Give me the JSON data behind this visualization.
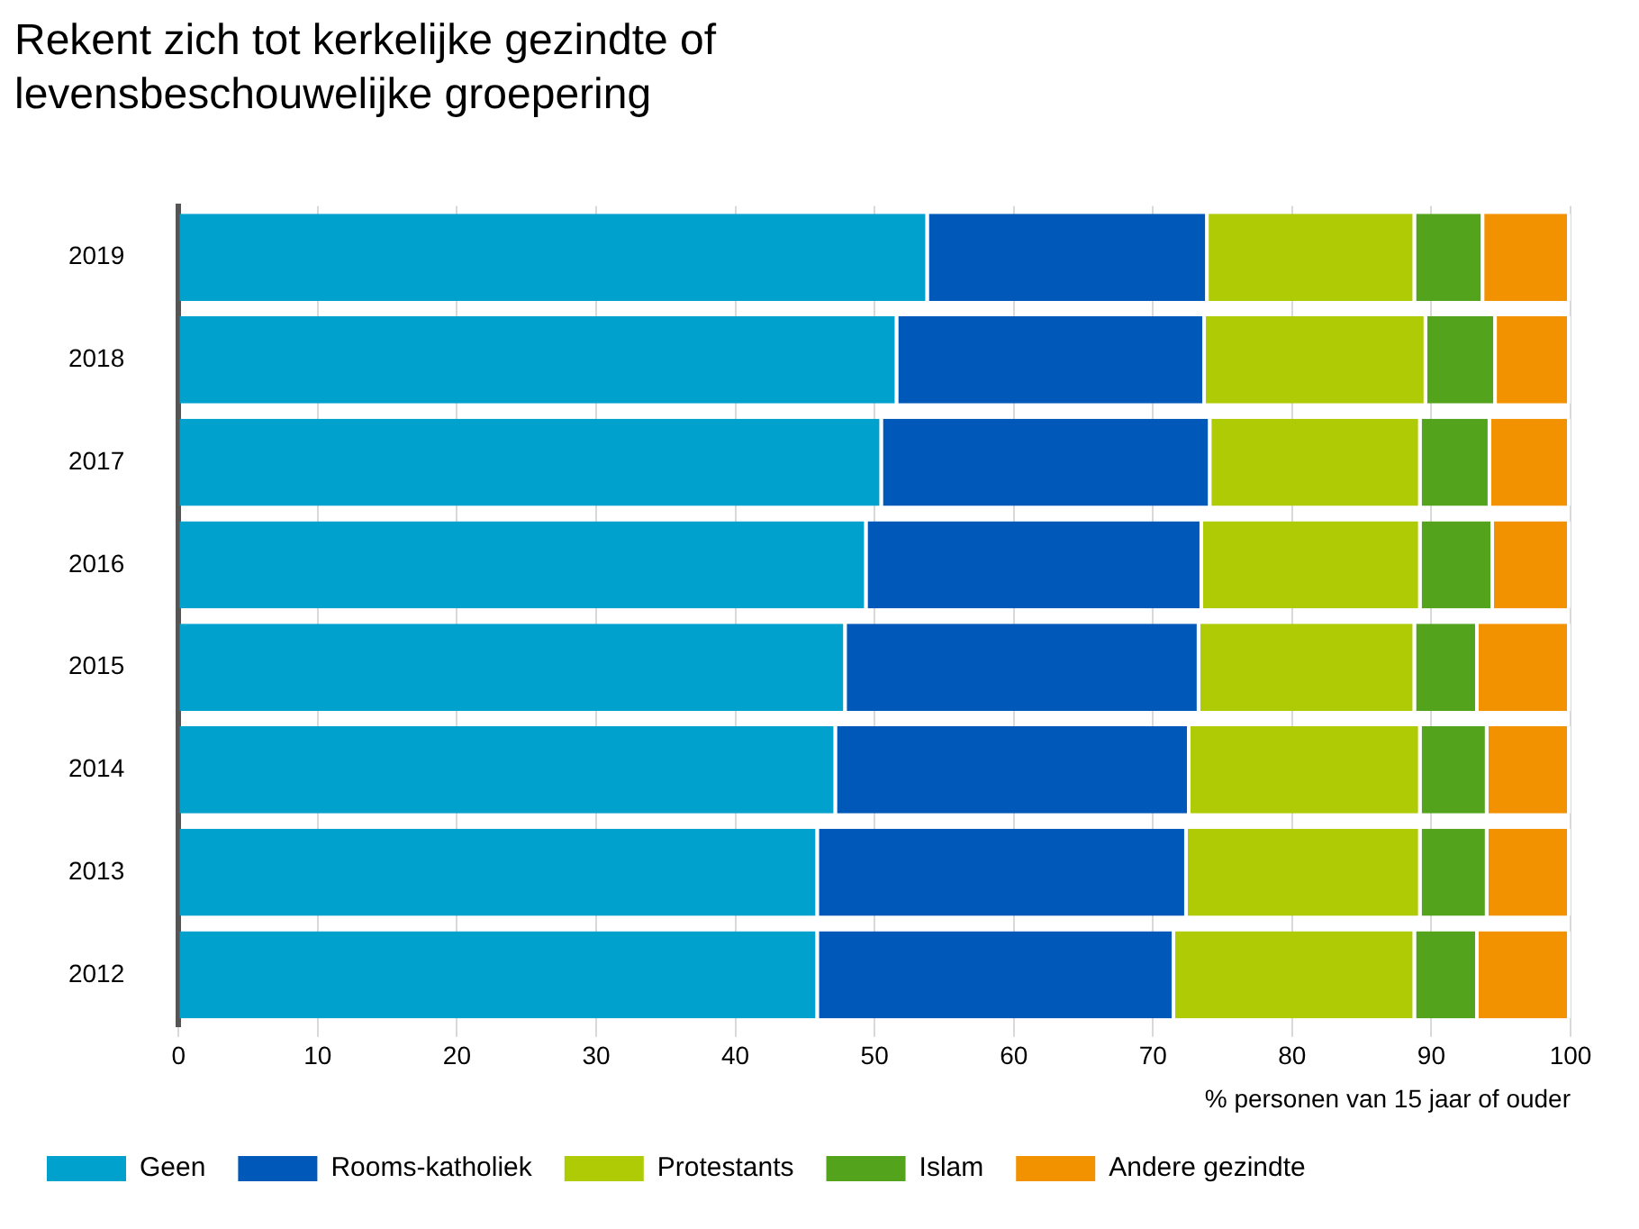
{
  "chart_data": {
    "type": "bar",
    "orientation": "horizontal",
    "stacked": true,
    "title": "Rekent zich tot kerkelijke gezindte of levensbeschouwelijke groepering",
    "xlabel": "% personen van 15 jaar of ouder",
    "categories": [
      "2019",
      "2018",
      "2017",
      "2016",
      "2015",
      "2014",
      "2013",
      "2012"
    ],
    "series": [
      {
        "name": "Geen",
        "color": "#00a1cd",
        "values": [
          53.9,
          51.7,
          50.6,
          49.5,
          48.0,
          47.3,
          46.0,
          46.0
        ]
      },
      {
        "name": "Rooms-katholiek",
        "color": "#0058b8",
        "values": [
          20.1,
          22.1,
          23.6,
          24.1,
          25.4,
          25.4,
          26.5,
          25.6
        ]
      },
      {
        "name": "Protestants",
        "color": "#afcb05",
        "values": [
          14.9,
          15.9,
          15.1,
          15.7,
          15.5,
          16.6,
          16.8,
          17.3
        ]
      },
      {
        "name": "Islam",
        "color": "#53a31d",
        "values": [
          4.9,
          5.0,
          5.0,
          5.2,
          4.5,
          4.8,
          4.8,
          4.5
        ]
      },
      {
        "name": "Andere gezindte",
        "color": "#f39200",
        "values": [
          6.2,
          5.3,
          5.7,
          5.5,
          6.6,
          5.9,
          5.9,
          6.6
        ]
      }
    ],
    "xlim": [
      0,
      100
    ],
    "xticks": [
      0,
      10,
      20,
      30,
      40,
      50,
      60,
      70,
      80,
      90,
      100
    ],
    "grid": "x",
    "legend": "bottom"
  }
}
